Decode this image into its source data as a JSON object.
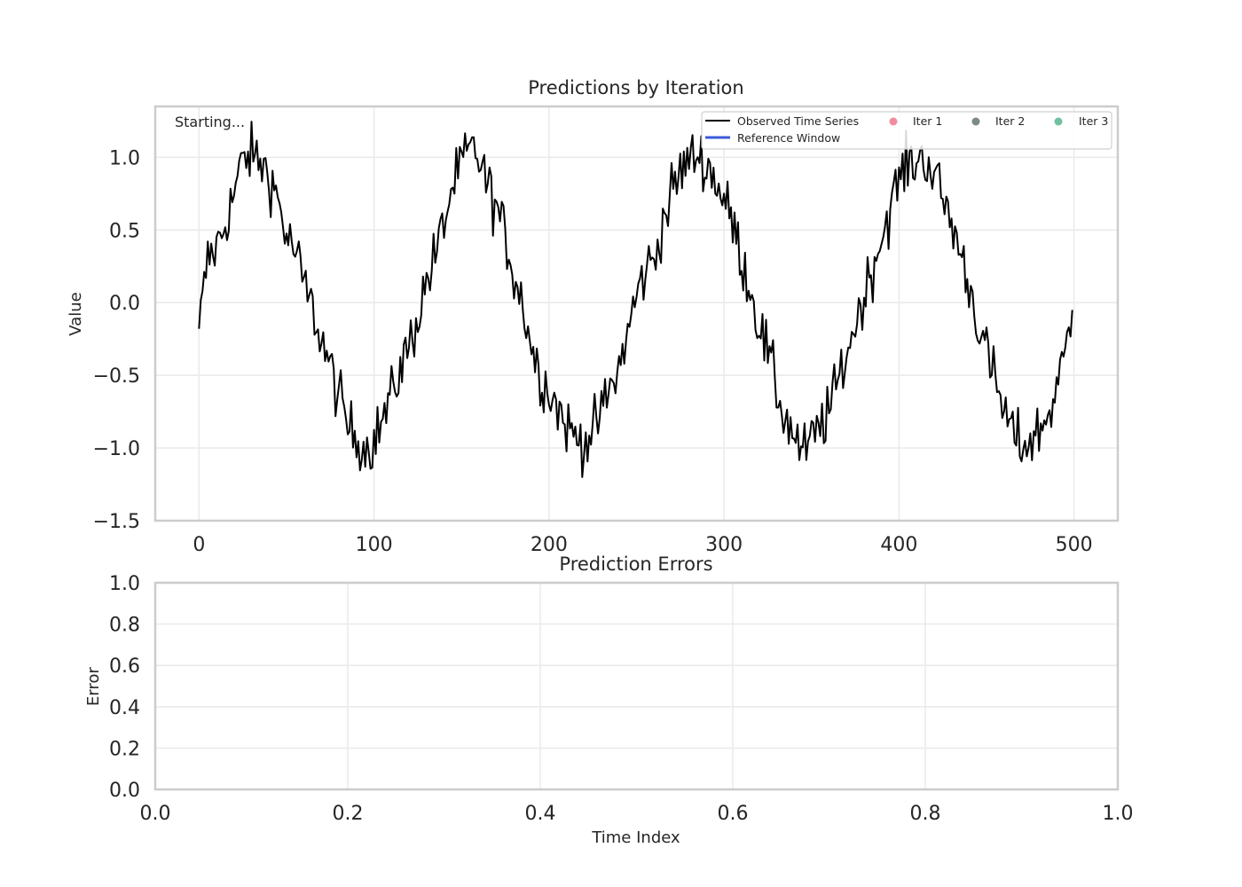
{
  "chart_data": [
    {
      "type": "line",
      "title": "Predictions by Iteration",
      "status_text": "Starting...",
      "xlabel": "",
      "ylabel": "Value",
      "xlim": [
        -25,
        525
      ],
      "ylim": [
        -1.5,
        1.35
      ],
      "xticks": [
        0,
        100,
        200,
        300,
        400,
        500
      ],
      "xtick_labels": [
        "0",
        "100",
        "200",
        "300",
        "400",
        "500"
      ],
      "yticks": [
        1.0,
        0.5,
        0.0,
        -0.5,
        -1.0,
        -1.5
      ],
      "ytick_labels": [
        "1.0",
        "0.5",
        "0.0",
        "−0.5",
        "−1.0",
        "−1.5"
      ],
      "grid": true,
      "legend_position": "top-right",
      "series": [
        {
          "name": "Observed Time Series",
          "color": "#000000",
          "kind": "line",
          "description": "noisy sine wave, period ~126, amplitude ~1, noise sd ~0.1, 500 points",
          "x_start": 0,
          "x_end": 499,
          "anchors": [
            [
              0,
              -0.18
            ],
            [
              5,
              0.3
            ],
            [
              10,
              0.38
            ],
            [
              15,
              0.55
            ],
            [
              20,
              0.75
            ],
            [
              25,
              0.98
            ],
            [
              30,
              1.02
            ],
            [
              35,
              0.97
            ],
            [
              40,
              0.88
            ],
            [
              45,
              0.72
            ],
            [
              50,
              0.45
            ],
            [
              55,
              0.35
            ],
            [
              60,
              0.12
            ],
            [
              65,
              -0.05
            ],
            [
              70,
              -0.25
            ],
            [
              75,
              -0.45
            ],
            [
              80,
              -0.65
            ],
            [
              85,
              -0.85
            ],
            [
              90,
              -0.92
            ],
            [
              95,
              -1.0
            ],
            [
              100,
              -0.95
            ],
            [
              105,
              -0.8
            ],
            [
              110,
              -0.65
            ],
            [
              115,
              -0.45
            ],
            [
              120,
              -0.3
            ],
            [
              125,
              -0.1
            ],
            [
              130,
              0.15
            ],
            [
              135,
              0.32
            ],
            [
              140,
              0.55
            ],
            [
              145,
              0.8
            ],
            [
              150,
              0.95
            ],
            [
              155,
              1.05
            ],
            [
              160,
              1.0
            ],
            [
              165,
              0.8
            ],
            [
              170,
              0.65
            ],
            [
              175,
              0.45
            ],
            [
              180,
              0.2
            ],
            [
              185,
              0.0
            ],
            [
              190,
              -0.3
            ],
            [
              195,
              -0.5
            ],
            [
              200,
              -0.6
            ],
            [
              205,
              -0.72
            ],
            [
              210,
              -0.85
            ],
            [
              215,
              -0.92
            ],
            [
              220,
              -0.95
            ],
            [
              225,
              -0.9
            ],
            [
              230,
              -0.75
            ],
            [
              235,
              -0.6
            ],
            [
              240,
              -0.45
            ],
            [
              245,
              -0.2
            ],
            [
              250,
              0.05
            ],
            [
              255,
              0.22
            ],
            [
              260,
              0.3
            ],
            [
              265,
              0.55
            ],
            [
              270,
              0.75
            ],
            [
              275,
              0.9
            ],
            [
              280,
              0.98
            ],
            [
              285,
              1.02
            ],
            [
              290,
              0.95
            ],
            [
              295,
              0.85
            ],
            [
              300,
              0.7
            ],
            [
              305,
              0.55
            ],
            [
              310,
              0.3
            ],
            [
              315,
              0.1
            ],
            [
              320,
              -0.15
            ],
            [
              325,
              -0.35
            ],
            [
              330,
              -0.6
            ],
            [
              335,
              -0.8
            ],
            [
              340,
              -0.9
            ],
            [
              345,
              -1.05
            ],
            [
              350,
              -0.95
            ],
            [
              355,
              -0.85
            ],
            [
              360,
              -0.75
            ],
            [
              365,
              -0.55
            ],
            [
              370,
              -0.35
            ],
            [
              375,
              -0.15
            ],
            [
              380,
              0.05
            ],
            [
              385,
              0.25
            ],
            [
              390,
              0.45
            ],
            [
              395,
              0.65
            ],
            [
              400,
              0.85
            ],
            [
              405,
              0.95
            ],
            [
              410,
              0.98
            ],
            [
              415,
              1.0
            ],
            [
              420,
              0.88
            ],
            [
              425,
              0.72
            ],
            [
              430,
              0.55
            ],
            [
              435,
              0.35
            ],
            [
              440,
              0.12
            ],
            [
              445,
              -0.12
            ],
            [
              450,
              -0.35
            ],
            [
              455,
              -0.55
            ],
            [
              460,
              -0.75
            ],
            [
              465,
              -0.9
            ],
            [
              470,
              -0.98
            ],
            [
              475,
              -0.95
            ],
            [
              480,
              -0.88
            ],
            [
              485,
              -0.78
            ],
            [
              490,
              -0.6
            ],
            [
              495,
              -0.35
            ],
            [
              499,
              -0.05
            ]
          ]
        },
        {
          "name": "Reference Window",
          "color": "#3b5bdb",
          "kind": "line",
          "points": []
        },
        {
          "name": "Iter 1",
          "color": "#f08ca0",
          "kind": "scatter",
          "points": []
        },
        {
          "name": "Iter 2",
          "color": "#7a8a85",
          "kind": "scatter",
          "points": []
        },
        {
          "name": "Iter 3",
          "color": "#6fc0a0",
          "kind": "scatter",
          "points": []
        }
      ]
    },
    {
      "type": "line",
      "title": "Prediction Errors",
      "xlabel": "Time Index",
      "ylabel": "Error",
      "xlim": [
        0.0,
        1.0
      ],
      "ylim": [
        0.0,
        1.0
      ],
      "xticks": [
        0.0,
        0.2,
        0.4,
        0.6,
        0.8,
        1.0
      ],
      "xtick_labels": [
        "0.0",
        "0.2",
        "0.4",
        "0.6",
        "0.8",
        "1.0"
      ],
      "yticks": [
        1.0,
        0.8,
        0.6,
        0.4,
        0.2,
        0.0
      ],
      "ytick_labels": [
        "1.0",
        "0.8",
        "0.6",
        "0.4",
        "0.2",
        "0.0"
      ],
      "grid": true,
      "series": []
    }
  ]
}
